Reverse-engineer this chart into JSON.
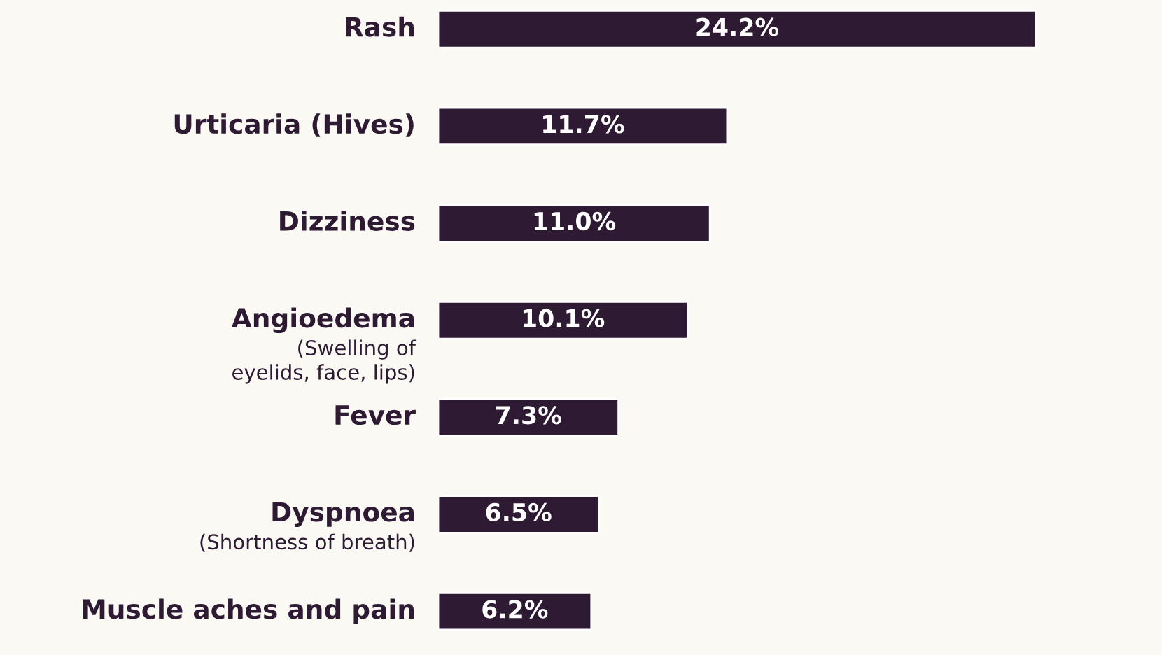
{
  "chart_data": {
    "type": "bar",
    "orientation": "horizontal",
    "categories": [
      "Rash",
      "Urticaria (Hives)",
      "Dizziness",
      "Angioedema\n(Swelling of\neyelids, face, lips)",
      "Fever",
      "Dyspnoea\n(Shortness of breath)",
      "Muscle aches and pain"
    ],
    "values": [
      24.2,
      11.7,
      11.0,
      10.1,
      7.3,
      6.5,
      6.2
    ],
    "value_labels": [
      "24.2%",
      "11.7%",
      "11.0%",
      "10.1%",
      "7.3%",
      "6.5%",
      "6.2%"
    ],
    "color": "#2e1a33",
    "legend": false
  }
}
